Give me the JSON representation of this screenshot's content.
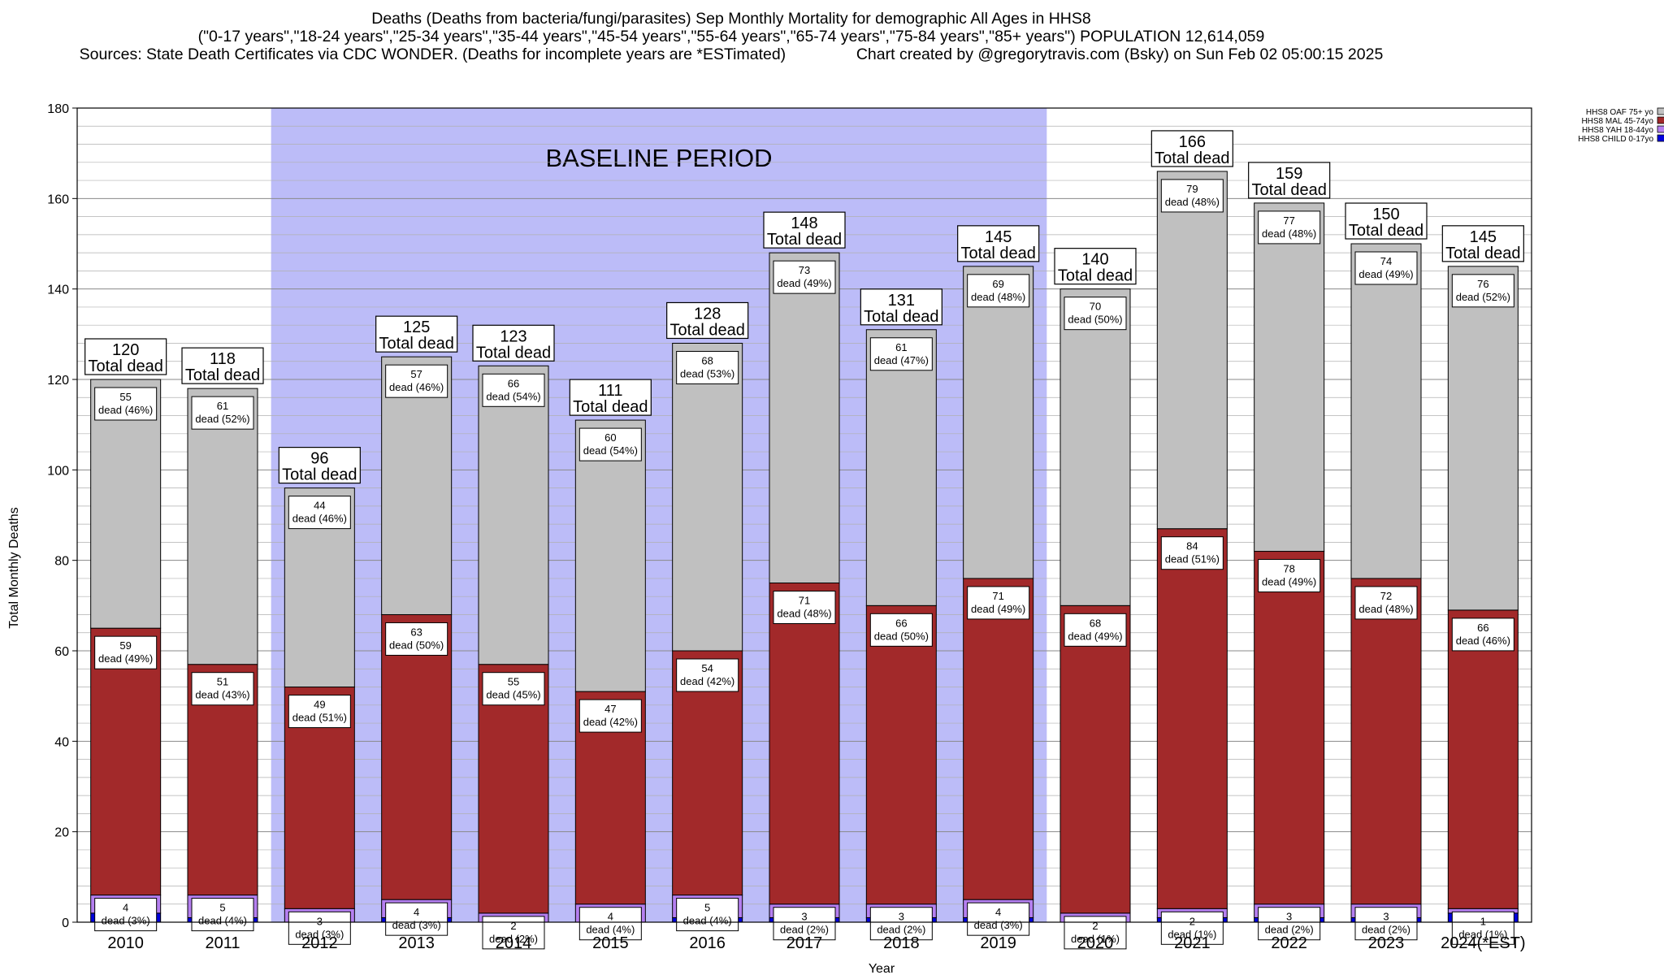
{
  "header": {
    "line1": "Deaths (Deaths from bacteria/fungi/parasites) Sep Monthly Mortality for demographic All Ages in HHS8",
    "line2": "(\"0-17 years\",\"18-24 years\",\"25-34 years\",\"35-44 years\",\"45-54 years\",\"55-64 years\",\"65-74 years\",\"75-84 years\",\"85+ years\") POPULATION 12,614,059",
    "line3": "Sources: State Death Certificates via CDC WONDER. (Deaths for incomplete years are *ESTimated)                Chart created by @gregorytravis.com (Bsky) on Sun Feb 02 05:00:15 2025"
  },
  "chart_data": {
    "type": "bar",
    "stacked": true,
    "xlabel": "Year",
    "ylabel": "Total Monthly Deaths",
    "ylim": [
      0,
      180
    ],
    "yticks": [
      0,
      20,
      40,
      60,
      80,
      100,
      120,
      140,
      160,
      180
    ],
    "grid": true,
    "legend_position": "top-right",
    "baseline_label": "BASELINE PERIOD",
    "baseline_range": [
      "2012",
      "2019"
    ],
    "baseline_color": "#bcbcf8",
    "total_suffix": "Total dead",
    "segment_prefix": "dead",
    "categories": [
      "2010",
      "2011",
      "2012",
      "2013",
      "2014",
      "2015",
      "2016",
      "2017",
      "2018",
      "2019",
      "2020",
      "2021",
      "2022",
      "2023",
      "2024(*EST)"
    ],
    "totals": [
      120,
      118,
      96,
      125,
      123,
      111,
      128,
      148,
      131,
      145,
      140,
      166,
      159,
      150,
      145
    ],
    "series": [
      {
        "name": "HHS8 CHILD 0-17yo",
        "color": "#0000dd",
        "values": [
          2,
          1,
          0,
          1,
          0,
          0,
          1,
          1,
          1,
          1,
          0,
          1,
          1,
          1,
          2
        ]
      },
      {
        "name": "HHS8 YAH 18-44yo",
        "color": "#b57ff0",
        "values": [
          4,
          5,
          3,
          4,
          2,
          4,
          5,
          3,
          3,
          4,
          2,
          2,
          3,
          3,
          1
        ],
        "labels": [
          "4",
          "5",
          "3",
          "4",
          "2",
          "4",
          "5",
          "3",
          "3",
          "4",
          "2",
          "2",
          "3",
          "3",
          "1"
        ],
        "pct": [
          "(3%)",
          "(4%)",
          "(3%)",
          "(3%)",
          "(2%)",
          "(4%)",
          "(4%)",
          "(2%)",
          "(2%)",
          "(3%)",
          "(1%)",
          "(1%)",
          "(2%)",
          "(2%)",
          "(1%)"
        ]
      },
      {
        "name": "HHS8 MAL 45-74yo",
        "color": "#a2292a",
        "values": [
          59,
          51,
          49,
          63,
          55,
          47,
          54,
          71,
          66,
          71,
          68,
          84,
          78,
          72,
          66
        ],
        "labels": [
          "59",
          "51",
          "49",
          "63",
          "55",
          "47",
          "54",
          "71",
          "66",
          "71",
          "68",
          "84",
          "78",
          "72",
          "66"
        ],
        "pct": [
          "(49%)",
          "(43%)",
          "(51%)",
          "(50%)",
          "(45%)",
          "(42%)",
          "(42%)",
          "(48%)",
          "(50%)",
          "(49%)",
          "(49%)",
          "(51%)",
          "(49%)",
          "(48%)",
          "(46%)"
        ]
      },
      {
        "name": "HHS8 OAF 75+ yo",
        "color": "#c0c0c0",
        "values": [
          55,
          61,
          44,
          57,
          66,
          60,
          68,
          73,
          61,
          69,
          70,
          79,
          77,
          74,
          76
        ],
        "labels": [
          "55",
          "61",
          "44",
          "57",
          "66",
          "60",
          "68",
          "73",
          "61",
          "69",
          "70",
          "79",
          "77",
          "74",
          "76"
        ],
        "pct": [
          "(46%)",
          "(52%)",
          "(46%)",
          "(46%)",
          "(54%)",
          "(54%)",
          "(53%)",
          "(49%)",
          "(47%)",
          "(48%)",
          "(50%)",
          "(48%)",
          "(48%)",
          "(49%)",
          "(52%)"
        ]
      }
    ]
  }
}
